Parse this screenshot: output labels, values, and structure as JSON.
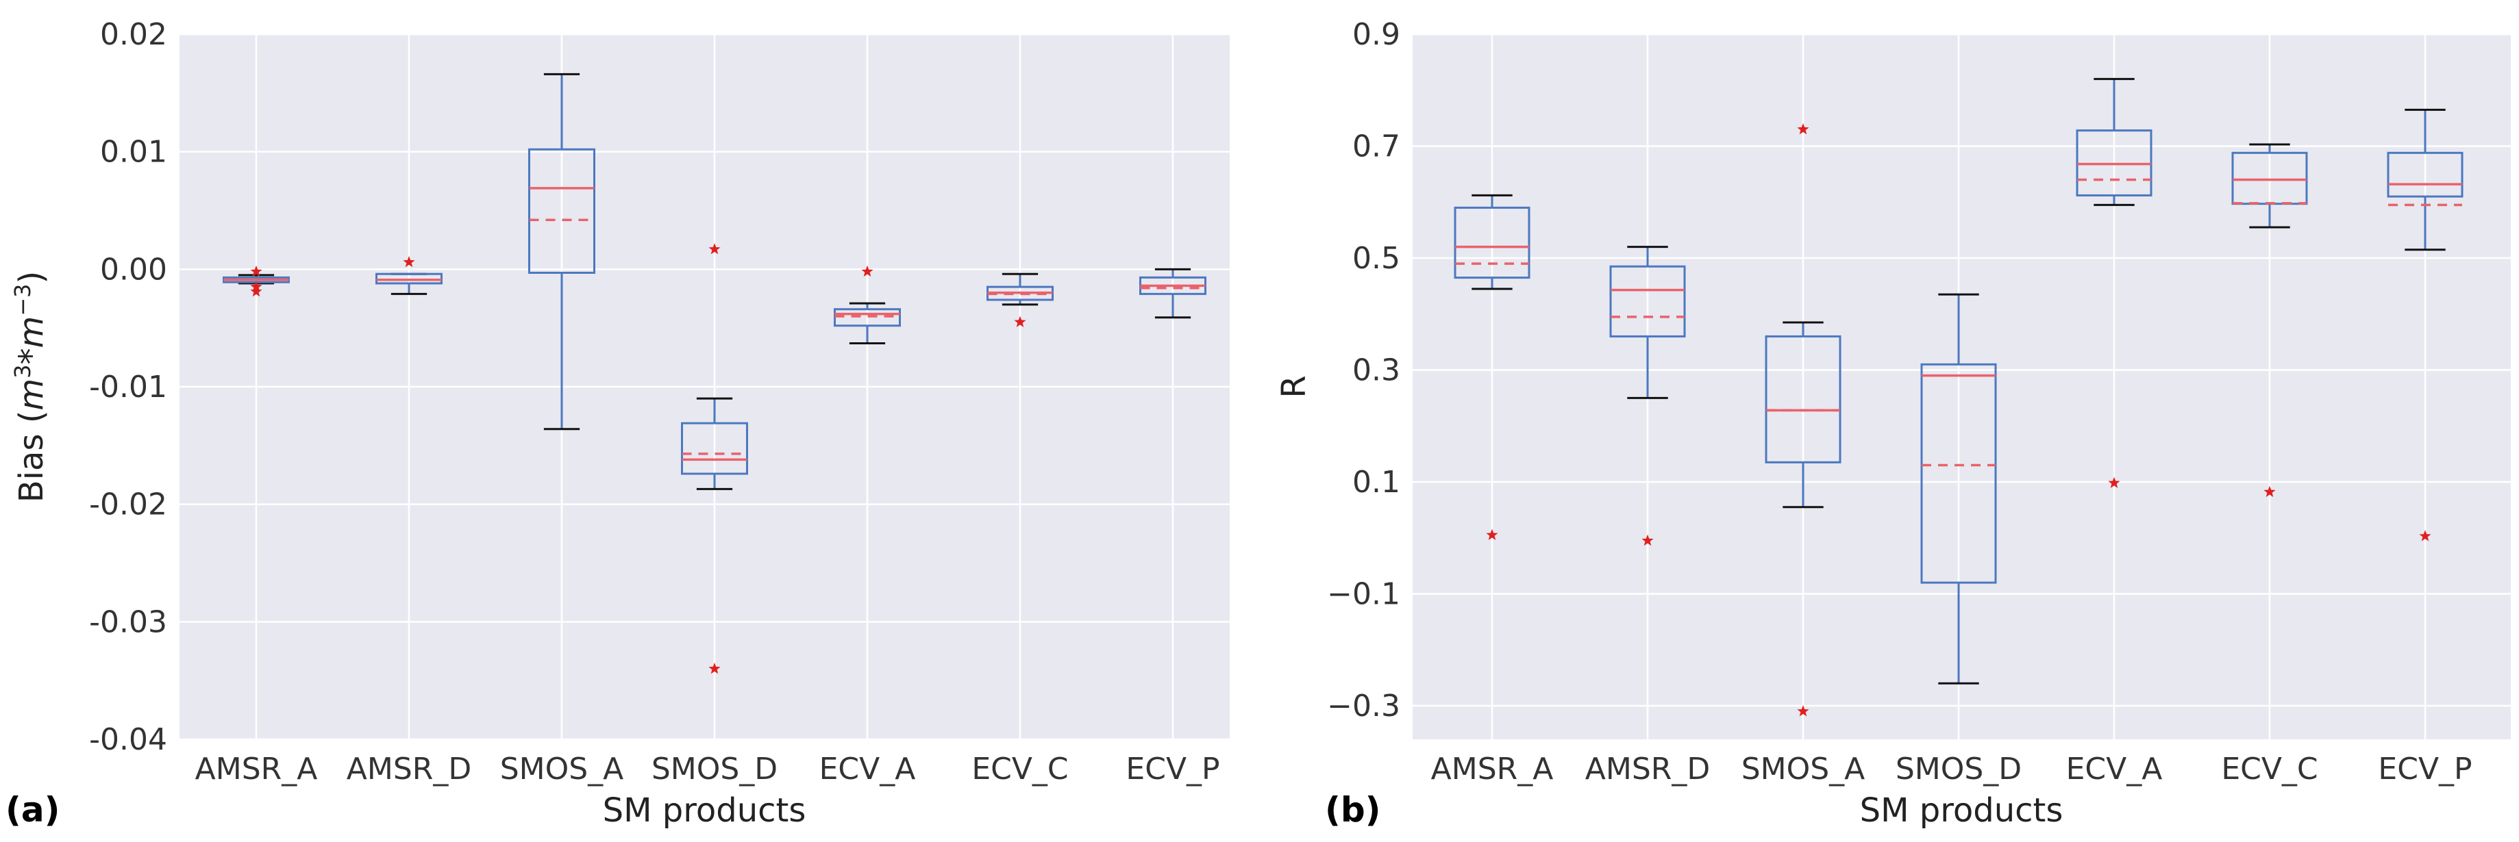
{
  "colors": {
    "background": "#e8e8f0",
    "grid": "#ffffff",
    "box": "#4c78c0",
    "median": "#e8636b",
    "mean": "#e8636b",
    "whisker_cap": "#111111",
    "outlier": "#e0201f"
  },
  "chart_data": [
    {
      "id": "a",
      "panel_label": "(a)",
      "type": "box",
      "title": "",
      "xlabel": "SM products",
      "ylabel_main": "Bias (",
      "ylabel_m1": "m",
      "ylabel_exp1": "3",
      "ylabel_mid": "*",
      "ylabel_m2": "m",
      "ylabel_exp2": "−3",
      "ylabel_close": ")",
      "ylim": [
        -0.04,
        0.02
      ],
      "yticks": [
        -0.04,
        -0.03,
        -0.02,
        -0.01,
        0.0,
        0.01,
        0.02
      ],
      "ytick_labels": [
        "-0.04",
        "-0.03",
        "-0.02",
        "-0.01",
        "0.00",
        "0.01",
        "0.02"
      ],
      "categories": [
        "AMSR_A",
        "AMSR_D",
        "SMOS_A",
        "SMOS_D",
        "ECV_A",
        "ECV_C",
        "ECV_P"
      ],
      "boxes": [
        {
          "whislo": -0.0012,
          "q1": -0.0011,
          "median": -0.0009,
          "mean": -0.0009,
          "q3": -0.0007,
          "whishi": -0.0005,
          "fliers": [
            -0.0002,
            -0.0015,
            -0.0019
          ]
        },
        {
          "whislo": -0.0021,
          "q1": -0.0012,
          "median": -0.0009,
          "mean": -0.0009,
          "q3": -0.0004,
          "whishi": -0.0004,
          "fliers": [
            0.0006
          ]
        },
        {
          "whislo": -0.0136,
          "q1": -0.0003,
          "median": 0.0069,
          "mean": 0.0042,
          "q3": 0.0102,
          "whishi": 0.0166,
          "fliers": []
        },
        {
          "whislo": -0.0187,
          "q1": -0.0174,
          "median": -0.0162,
          "mean": -0.0157,
          "q3": -0.0131,
          "whishi": -0.011,
          "fliers": [
            0.0017,
            -0.034
          ]
        },
        {
          "whislo": -0.0063,
          "q1": -0.0048,
          "median": -0.0038,
          "mean": -0.004,
          "q3": -0.0034,
          "whishi": -0.0029,
          "fliers": [
            -0.0002
          ]
        },
        {
          "whislo": -0.003,
          "q1": -0.0026,
          "median": -0.002,
          "mean": -0.0021,
          "q3": -0.0015,
          "whishi": -0.0004,
          "fliers": [
            -0.0045
          ]
        },
        {
          "whislo": -0.0041,
          "q1": -0.0021,
          "median": -0.0014,
          "mean": -0.0016,
          "q3": -0.0007,
          "whishi": 0.0,
          "fliers": []
        }
      ]
    },
    {
      "id": "b",
      "panel_label": "(b)",
      "type": "box",
      "title": "",
      "xlabel": "SM products",
      "ylabel_main": "R",
      "ylim": [
        -0.36,
        0.9
      ],
      "yticks": [
        -0.3,
        -0.1,
        0.1,
        0.3,
        0.5,
        0.7,
        0.9
      ],
      "ytick_labels": [
        "−0.3",
        "−0.1",
        "0.1",
        "0.3",
        "0.5",
        "0.7",
        "0.9"
      ],
      "categories": [
        "AMSR_A",
        "AMSR_D",
        "SMOS_A",
        "SMOS_D",
        "ECV_A",
        "ECV_C",
        "ECV_P"
      ],
      "boxes": [
        {
          "whislo": 0.445,
          "q1": 0.465,
          "median": 0.52,
          "mean": 0.49,
          "q3": 0.59,
          "whishi": 0.612,
          "fliers": [
            0.005
          ]
        },
        {
          "whislo": 0.25,
          "q1": 0.36,
          "median": 0.443,
          "mean": 0.395,
          "q3": 0.485,
          "whishi": 0.52,
          "fliers": [
            -0.005
          ]
        },
        {
          "whislo": 0.055,
          "q1": 0.135,
          "median": 0.228,
          "mean": 0.228,
          "q3": 0.36,
          "whishi": 0.385,
          "fliers": [
            0.73,
            -0.31
          ]
        },
        {
          "whislo": -0.26,
          "q1": -0.08,
          "median": 0.29,
          "mean": 0.13,
          "q3": 0.31,
          "whishi": 0.435,
          "fliers": []
        },
        {
          "whislo": 0.595,
          "q1": 0.612,
          "median": 0.668,
          "mean": 0.64,
          "q3": 0.728,
          "whishi": 0.82,
          "fliers": [
            0.098
          ]
        },
        {
          "whislo": 0.555,
          "q1": 0.597,
          "median": 0.64,
          "mean": 0.598,
          "q3": 0.688,
          "whishi": 0.703,
          "fliers": [
            0.082
          ]
        },
        {
          "whislo": 0.515,
          "q1": 0.61,
          "median": 0.632,
          "mean": 0.595,
          "q3": 0.688,
          "whishi": 0.765,
          "fliers": [
            0.003
          ]
        }
      ]
    }
  ]
}
